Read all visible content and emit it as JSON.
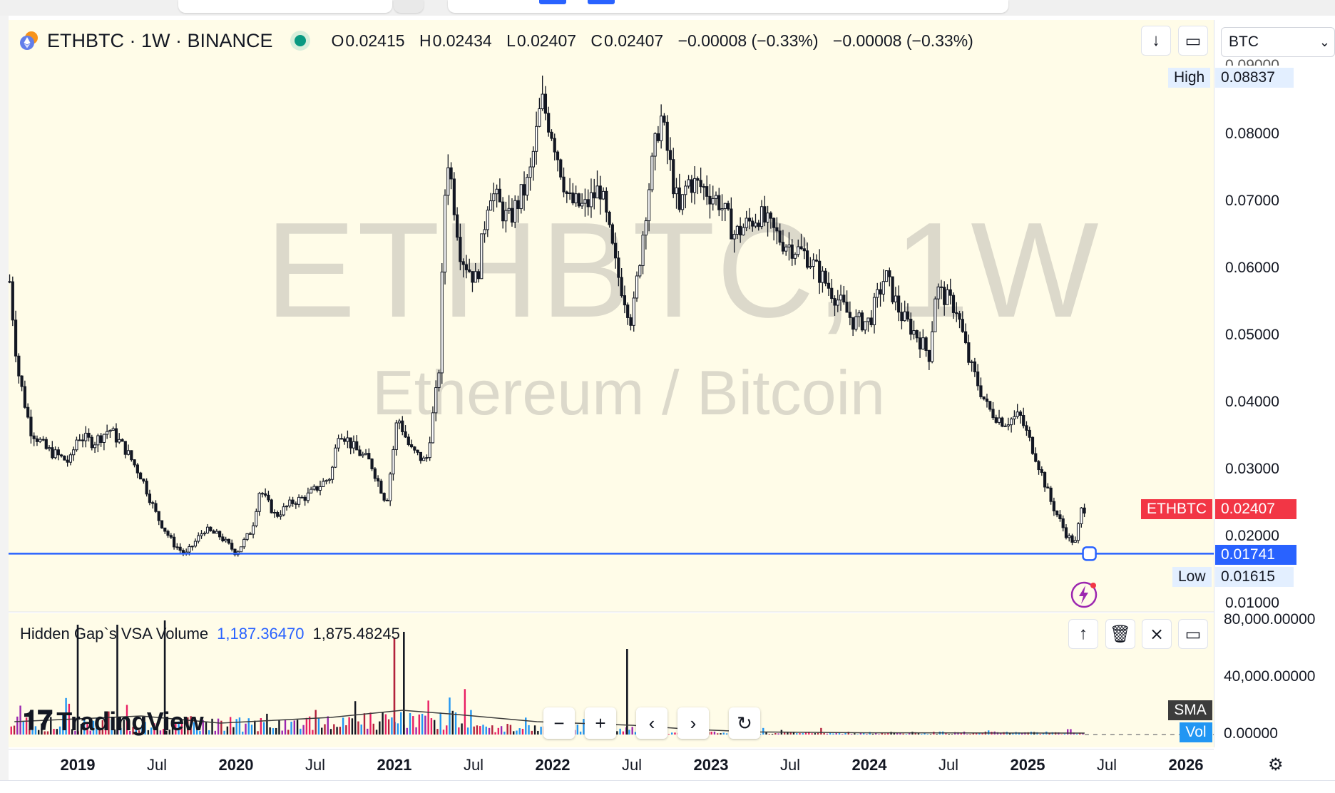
{
  "legend": {
    "symbol_text": "ETHBTC · 1W · BINANCE",
    "ohlc": [
      {
        "k": "O",
        "v": "0.02415"
      },
      {
        "k": "H",
        "v": "0.02434"
      },
      {
        "k": "L",
        "v": "0.02407"
      },
      {
        "k": "C",
        "v": "0.02407"
      }
    ],
    "change": "−0.00008 (−0.33%)",
    "change2": "−0.00008 (−0.33%)"
  },
  "watermark": {
    "line1": "ETHBTC, 1W",
    "line2": "Ethereum / Bitcoin"
  },
  "currency": "BTC",
  "price_tags": {
    "high_label": "High",
    "high_value": "0.08837",
    "symbol_tag": "ETHBTC",
    "last_value": "0.02407",
    "line_value": "0.01741",
    "low_label": "Low",
    "low_value": "0.01615",
    "partial_top": "0.09000"
  },
  "volume_legend": {
    "name": "Hidden Gap`s VSA Volume",
    "v1": "1,187.36470",
    "v2": "1,875.48245"
  },
  "volume_scale": [
    "80,000.00000",
    "40,000.00000",
    "0.00000"
  ],
  "volume_tags": {
    "sma": "SMA",
    "vol": "Vol"
  },
  "branding": "TradingView",
  "colors": {
    "accent": "#2962ff",
    "last_price": "#f23645",
    "up_line": "#089981",
    "pane_bg": "#fffce8"
  },
  "chart_data": {
    "type": "candlestick",
    "timeframe": "1W",
    "y_range": [
      0.01,
      0.09
    ],
    "y_ticks": [
      0.08,
      0.07,
      0.06,
      0.05,
      0.04,
      0.03,
      0.02,
      0.01
    ],
    "x_ticks": [
      {
        "label": "2019",
        "x": 2019.0,
        "bold": true
      },
      {
        "label": "Jul",
        "x": 2019.5,
        "bold": false
      },
      {
        "label": "2020",
        "x": 2020.0,
        "bold": true
      },
      {
        "label": "Jul",
        "x": 2020.5,
        "bold": false
      },
      {
        "label": "2021",
        "x": 2021.0,
        "bold": true
      },
      {
        "label": "Jul",
        "x": 2021.5,
        "bold": false
      },
      {
        "label": "2022",
        "x": 2022.0,
        "bold": true
      },
      {
        "label": "Jul",
        "x": 2022.5,
        "bold": false
      },
      {
        "label": "2023",
        "x": 2023.0,
        "bold": true
      },
      {
        "label": "Jul",
        "x": 2023.5,
        "bold": false
      },
      {
        "label": "2024",
        "x": 2024.0,
        "bold": true
      },
      {
        "label": "Jul",
        "x": 2024.5,
        "bold": false
      },
      {
        "label": "2025",
        "x": 2025.0,
        "bold": true
      },
      {
        "label": "Jul",
        "x": 2025.5,
        "bold": false
      },
      {
        "label": "2026",
        "x": 2026.0,
        "bold": true
      }
    ],
    "price_path": [
      [
        2018.57,
        0.058
      ],
      [
        2018.62,
        0.045
      ],
      [
        2018.7,
        0.036
      ],
      [
        2018.8,
        0.033
      ],
      [
        2018.95,
        0.031
      ],
      [
        2019.0,
        0.035
      ],
      [
        2019.1,
        0.034
      ],
      [
        2019.2,
        0.036
      ],
      [
        2019.3,
        0.033
      ],
      [
        2019.4,
        0.029
      ],
      [
        2019.5,
        0.023
      ],
      [
        2019.6,
        0.019
      ],
      [
        2019.68,
        0.0172
      ],
      [
        2019.8,
        0.021
      ],
      [
        2019.9,
        0.02
      ],
      [
        2020.0,
        0.0175
      ],
      [
        2020.1,
        0.021
      ],
      [
        2020.15,
        0.027
      ],
      [
        2020.25,
        0.023
      ],
      [
        2020.35,
        0.025
      ],
      [
        2020.45,
        0.026
      ],
      [
        2020.6,
        0.029
      ],
      [
        2020.65,
        0.036
      ],
      [
        2020.75,
        0.033
      ],
      [
        2020.85,
        0.031
      ],
      [
        2020.95,
        0.025
      ],
      [
        2021.02,
        0.038
      ],
      [
        2021.1,
        0.033
      ],
      [
        2021.2,
        0.031
      ],
      [
        2021.28,
        0.044
      ],
      [
        2021.33,
        0.078
      ],
      [
        2021.42,
        0.062
      ],
      [
        2021.52,
        0.058
      ],
      [
        2021.6,
        0.072
      ],
      [
        2021.72,
        0.067
      ],
      [
        2021.85,
        0.073
      ],
      [
        2021.93,
        0.085
      ],
      [
        2022.0,
        0.08
      ],
      [
        2022.1,
        0.07
      ],
      [
        2022.2,
        0.069
      ],
      [
        2022.3,
        0.072
      ],
      [
        2022.4,
        0.06
      ],
      [
        2022.5,
        0.052
      ],
      [
        2022.6,
        0.071
      ],
      [
        2022.68,
        0.083
      ],
      [
        2022.8,
        0.068
      ],
      [
        2022.85,
        0.073
      ],
      [
        2022.95,
        0.072
      ],
      [
        2023.05,
        0.07
      ],
      [
        2023.15,
        0.065
      ],
      [
        2023.3,
        0.068
      ],
      [
        2023.45,
        0.064
      ],
      [
        2023.6,
        0.062
      ],
      [
        2023.75,
        0.057
      ],
      [
        2023.9,
        0.052
      ],
      [
        2024.0,
        0.052
      ],
      [
        2024.1,
        0.059
      ],
      [
        2024.2,
        0.053
      ],
      [
        2024.3,
        0.05
      ],
      [
        2024.38,
        0.047
      ],
      [
        2024.42,
        0.057
      ],
      [
        2024.55,
        0.054
      ],
      [
        2024.63,
        0.046
      ],
      [
        2024.75,
        0.039
      ],
      [
        2024.85,
        0.037
      ],
      [
        2024.95,
        0.038
      ],
      [
        2025.05,
        0.032
      ],
      [
        2025.15,
        0.025
      ],
      [
        2025.25,
        0.02
      ],
      [
        2025.3,
        0.019
      ],
      [
        2025.34,
        0.024
      ],
      [
        2025.36,
        0.0241
      ]
    ],
    "horizontal_line": 0.01741,
    "last_price": 0.02407,
    "high": 0.08837,
    "low": 0.01615
  },
  "volume_data": {
    "y_range": [
      0,
      80000
    ],
    "spikes": [
      {
        "x": 2019.0,
        "v": 77000,
        "color": "#131722"
      },
      {
        "x": 2019.25,
        "v": 77000,
        "color": "#131722"
      },
      {
        "x": 2019.55,
        "v": 80000,
        "color": "#131722"
      },
      {
        "x": 2021.0,
        "v": 68000,
        "color": "#b2223c"
      },
      {
        "x": 2021.06,
        "v": 72000,
        "color": "#131722"
      },
      {
        "x": 2022.47,
        "v": 60000,
        "color": "#131722"
      }
    ]
  }
}
